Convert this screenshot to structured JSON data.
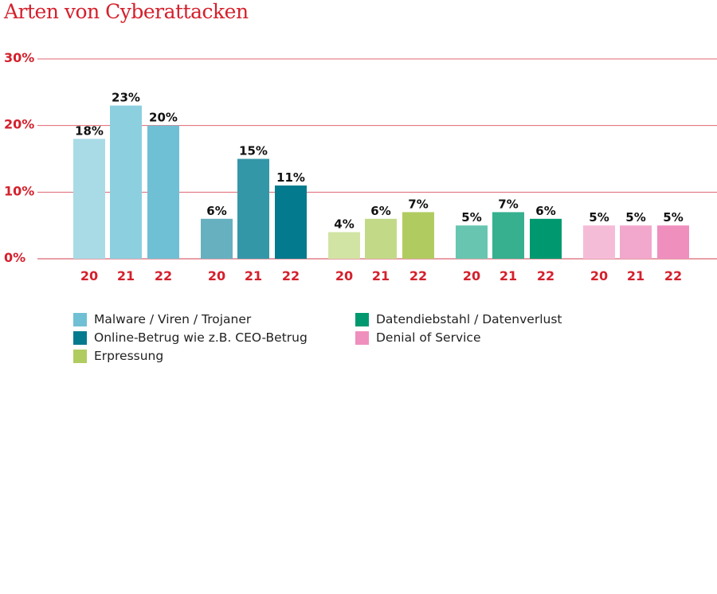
{
  "chart_data": {
    "type": "bar",
    "title": "Arten von Cyberattacken",
    "categories": [
      "20",
      "21",
      "22"
    ],
    "ylim": [
      0,
      30
    ],
    "yticks": [
      0,
      10,
      20,
      30
    ],
    "ytick_labels": [
      "0%",
      "10%",
      "20%",
      "30%"
    ],
    "grid": true,
    "legend_position": "bottom",
    "axis_color": "#d4202c",
    "series": [
      {
        "name": "Malware / Viren / Trojaner",
        "values": [
          18,
          23,
          20
        ],
        "labels": [
          "18%",
          "23%",
          "20%"
        ],
        "colors": [
          "#a8dbe6",
          "#8ccfdf",
          "#6fc0d4"
        ]
      },
      {
        "name": "Online-Betrug wie z.B. CEO-Betrug",
        "values": [
          6,
          15,
          11
        ],
        "labels": [
          "6%",
          "15%",
          "11%"
        ],
        "colors": [
          "#66b0bf",
          "#3497a8",
          "#037a8e"
        ]
      },
      {
        "name": "Erpressung",
        "values": [
          4,
          6,
          7
        ],
        "labels": [
          "4%",
          "6%",
          "7%"
        ],
        "colors": [
          "#d2e4a4",
          "#c2da88",
          "#b0cc60"
        ]
      },
      {
        "name": "Datendiebstahl / Datenverlust",
        "values": [
          5,
          7,
          6
        ],
        "labels": [
          "5%",
          "7%",
          "6%"
        ],
        "colors": [
          "#68c6b0",
          "#36b08f",
          "#00996f"
        ]
      },
      {
        "name": "Denial of Service",
        "values": [
          5,
          5,
          5
        ],
        "labels": [
          "5%",
          "5%",
          "5%"
        ],
        "colors": [
          "#f5bcd8",
          "#f2a8cc",
          "#ef8fbe"
        ]
      }
    ],
    "legend_colors": [
      "#6fc0d4",
      "#037a8e",
      "#b0cc60",
      "#00996f",
      "#ef8fbe"
    ]
  }
}
